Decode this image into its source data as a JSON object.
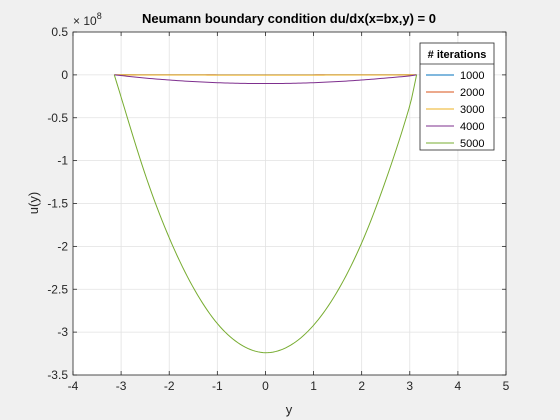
{
  "chart_data": {
    "type": "line",
    "title": "Neumann boundary condition du/dx(x=bx,y) = 0",
    "xlabel": "y",
    "ylabel": "u(y)",
    "exponent_label": "× 10",
    "exponent_power": "8",
    "xlim": [
      -4,
      5
    ],
    "ylim": [
      -3.5,
      0.5
    ],
    "y_scale_factor": "1e8",
    "grid": true,
    "x_ticks": [
      -4,
      -3,
      -2,
      -1,
      0,
      1,
      2,
      3,
      4,
      5
    ],
    "x_tick_labels": [
      "-4",
      "-3",
      "-2",
      "-1",
      "0",
      "1",
      "2",
      "3",
      "4",
      "5"
    ],
    "y_ticks": [
      0.5,
      0,
      -0.5,
      -1,
      -1.5,
      -2,
      -2.5,
      -3,
      -3.5
    ],
    "y_tick_labels": [
      "0.5",
      "0",
      "-0.5",
      "-1",
      "-1.5",
      "-2",
      "-2.5",
      "-3",
      "-3.5"
    ],
    "legend": {
      "title": "# iterations",
      "position": "top-right"
    },
    "x": [
      -3.14159,
      -2.5,
      -2.0,
      -1.5,
      -1.0,
      -0.5,
      0.0,
      0.5,
      1.0,
      1.5,
      2.0,
      2.5,
      3.0,
      3.14159
    ],
    "series": [
      {
        "name": "1000",
        "color": "#0072BD",
        "values": [
          0,
          0,
          0,
          0,
          0,
          0,
          0,
          0,
          0,
          0,
          0,
          0,
          0,
          0
        ]
      },
      {
        "name": "2000",
        "color": "#D95319",
        "values": [
          0,
          -0.0003,
          -0.0005,
          -0.0006,
          -0.0007,
          -0.0008,
          -0.0008,
          -0.0008,
          -0.0007,
          -0.0006,
          -0.0005,
          -0.0003,
          -0.0001,
          0
        ]
      },
      {
        "name": "3000",
        "color": "#EDB120",
        "values": [
          0,
          -0.001,
          -0.0016,
          -0.002,
          -0.0024,
          -0.0026,
          -0.0026,
          -0.0026,
          -0.0024,
          -0.002,
          -0.0016,
          -0.001,
          -0.0003,
          0
        ]
      },
      {
        "name": "4000",
        "color": "#7E2F8E",
        "values": [
          0,
          -0.037,
          -0.06,
          -0.078,
          -0.091,
          -0.099,
          -0.101,
          -0.099,
          -0.091,
          -0.078,
          -0.06,
          -0.037,
          -0.012,
          0
        ]
      },
      {
        "name": "5000",
        "color": "#77AC30",
        "values": [
          0,
          -1.16,
          -1.9,
          -2.48,
          -2.9,
          -3.15,
          -3.24,
          -3.16,
          -2.92,
          -2.52,
          -1.96,
          -1.23,
          -0.36,
          0
        ]
      }
    ]
  }
}
